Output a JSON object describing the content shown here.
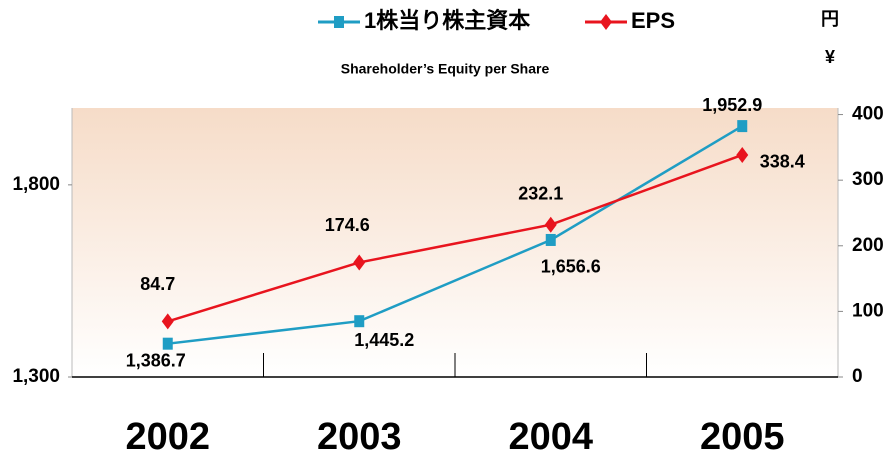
{
  "chart_data": {
    "type": "line",
    "title": "Shareholder’s Equity per Share",
    "y2_unit_labels": [
      "円",
      "¥"
    ],
    "categories": [
      "2002",
      "2003",
      "2004",
      "2005"
    ],
    "series": [
      {
        "name": "1株当り株主資本",
        "color": "#1f9dc4",
        "marker": "square",
        "axis": "y",
        "values": [
          1386.7,
          1445.2,
          1656.6,
          1952.9
        ],
        "value_labels": [
          "1,386.7",
          "1,445.2",
          "1,656.6",
          "1,952.9"
        ]
      },
      {
        "name": "EPS",
        "color": "#e8141e",
        "marker": "diamond",
        "axis": "y2",
        "values": [
          84.7,
          174.6,
          232.1,
          338.4
        ]
      }
    ],
    "ylim": [
      1300,
      2000
    ],
    "yticks": [
      {
        "value": 1300,
        "label": "1,300"
      },
      {
        "value": 1800,
        "label": "1,800"
      }
    ],
    "y2lim": [
      0,
      410
    ],
    "y2ticks": [
      0,
      100,
      200,
      300,
      400
    ],
    "legend": "top",
    "grid": false
  }
}
